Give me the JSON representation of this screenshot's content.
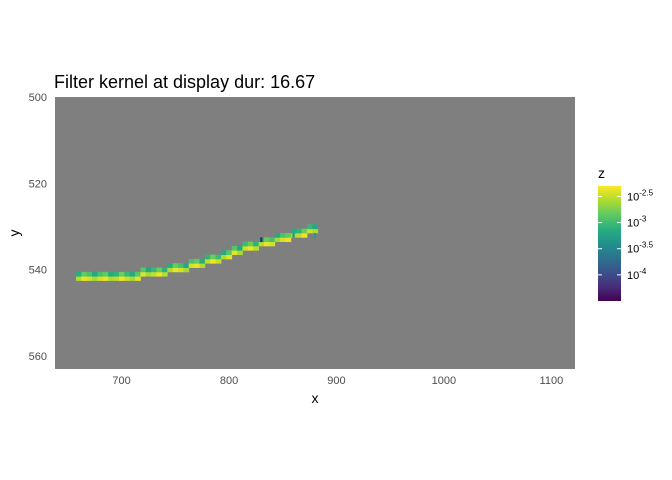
{
  "chart_data": {
    "type": "heatmap",
    "title": "Filter kernel at display dur: 16.67",
    "xlabel": "x",
    "ylabel": "y",
    "xlim": [
      638,
      1122
    ],
    "ylim": [
      500,
      563
    ],
    "y_reversed": true,
    "x_ticks": [
      {
        "value": 700,
        "label": "700"
      },
      {
        "value": 800,
        "label": "800"
      },
      {
        "value": 900,
        "label": "900"
      },
      {
        "value": 1000,
        "label": "1000"
      },
      {
        "value": 1100,
        "label": "1100"
      }
    ],
    "y_ticks": [
      {
        "value": 500,
        "label": "500"
      },
      {
        "value": 520,
        "label": "520"
      },
      {
        "value": 540,
        "label": "540"
      },
      {
        "value": 560,
        "label": "560"
      }
    ],
    "panel_background": "#7f7f7f",
    "colorscale": "viridis",
    "color_scale_type": "log10",
    "legend": {
      "title": "z",
      "position": "right",
      "log10_range": [
        -4.5,
        -2.3
      ],
      "ticks": [
        {
          "log10": -2.5,
          "base": "10",
          "exp": "-2.5"
        },
        {
          "log10": -3.0,
          "base": "10",
          "exp": "-3"
        },
        {
          "log10": -3.5,
          "base": "10",
          "exp": "-3.5"
        },
        {
          "log10": -4.0,
          "base": "10",
          "exp": "-4"
        }
      ]
    },
    "cell_size": {
      "dx": 5,
      "dy": 1
    },
    "track": {
      "x_start": 660,
      "x_end": 880,
      "y_points": [
        [
          660,
          542
        ],
        [
          700,
          542
        ],
        [
          730,
          541
        ],
        [
          760,
          539.5
        ],
        [
          790,
          537.5
        ],
        [
          820,
          535
        ],
        [
          850,
          533
        ],
        [
          880,
          531
        ]
      ],
      "core_log10": -2.6,
      "edge_log10": -3.2
    },
    "outlier_cells": [
      {
        "x": 830,
        "y": 533,
        "log10": -4.3
      },
      {
        "x": 860,
        "y": 532,
        "log10": -3.4
      },
      {
        "x": 880,
        "y": 532,
        "log10": -3.3
      }
    ]
  }
}
